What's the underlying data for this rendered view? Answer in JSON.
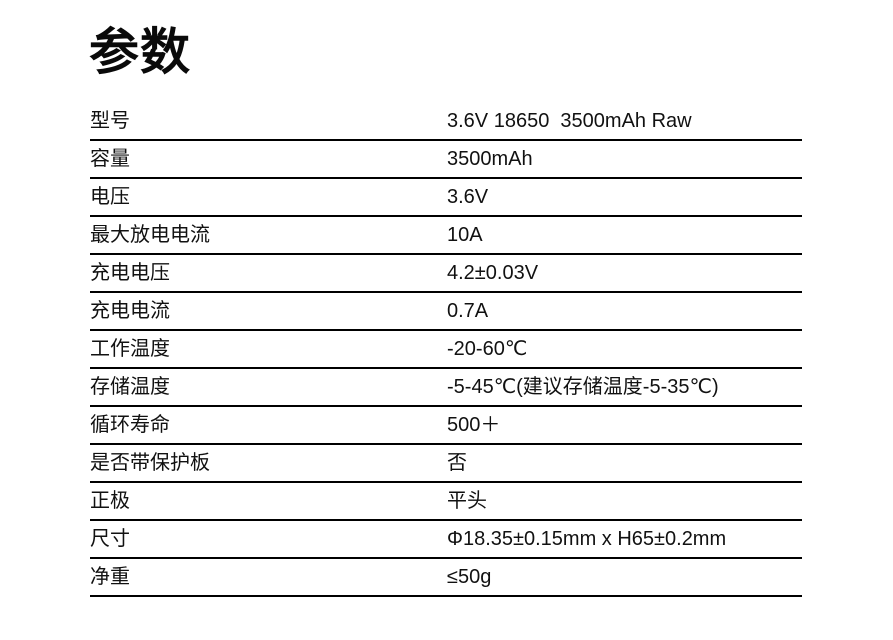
{
  "page_title": "参数",
  "colors": {
    "background": "#ffffff",
    "text": "#111111",
    "rule": "#000000"
  },
  "table": {
    "rows": [
      {
        "label": "型号",
        "value": "3.6V 18650  3500mAh Raw"
      },
      {
        "label": "容量",
        "value": "3500mAh"
      },
      {
        "label": "电压",
        "value": "3.6V"
      },
      {
        "label": "最大放电电流",
        "value": "10A"
      },
      {
        "label": "充电电压",
        "value": "4.2±0.03V"
      },
      {
        "label": "充电电流",
        "value": "0.7A"
      },
      {
        "label": "工作温度",
        "value": "-20-60℃"
      },
      {
        "label": "存储温度",
        "value": "-5-45℃(建议存储温度-5-35℃)"
      },
      {
        "label": "循环寿命",
        "value": "500＋"
      },
      {
        "label": "是否带保护板",
        "value": "否"
      },
      {
        "label": "正极",
        "value": "平头"
      },
      {
        "label": "尺寸",
        "value": "Φ18.35±0.15mm x H65±0.2mm"
      },
      {
        "label": "净重",
        "value": "≤50g"
      }
    ]
  }
}
